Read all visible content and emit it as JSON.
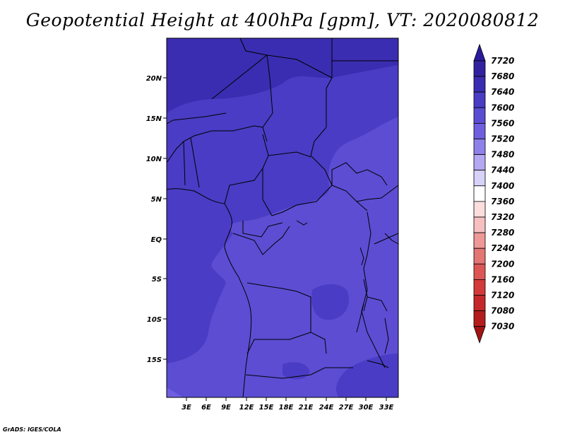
{
  "title": "Geopotential Height at 400hPa [gpm], VT: 2020080812",
  "credit": "GrADS: IGES/COLA",
  "map": {
    "lat_labels": [
      "20N",
      "15N",
      "10N",
      "5N",
      "EQ",
      "5S",
      "10S",
      "15S"
    ],
    "lon_labels": [
      "3E",
      "6E",
      "9E",
      "12E",
      "15E",
      "18E",
      "21E",
      "24E",
      "27E",
      "30E",
      "33E"
    ]
  },
  "colorbar": {
    "levels": [
      "7720",
      "7680",
      "7640",
      "7600",
      "7560",
      "7520",
      "7480",
      "7440",
      "7400",
      "7360",
      "7320",
      "7280",
      "7240",
      "7200",
      "7160",
      "7120",
      "7080",
      "7030"
    ],
    "colors": [
      "#2a1a9c",
      "#33229f",
      "#3b2db1",
      "#4a3cc4",
      "#5c4dd3",
      "#6f5fdf",
      "#8f80ea",
      "#b3a8f2",
      "#d7d2f8",
      "#ffffff",
      "#fcdede",
      "#f7c0c0",
      "#ef9898",
      "#e47575",
      "#dc5656",
      "#d43a3a",
      "#c42828",
      "#b51d1d",
      "#a01414"
    ]
  },
  "fields": {
    "c7600": "#4a3cc4",
    "c7640": "#3b2db1",
    "c7560": "#5c4dd3",
    "c7520": "#6f5fdf",
    "border": "#000000"
  }
}
